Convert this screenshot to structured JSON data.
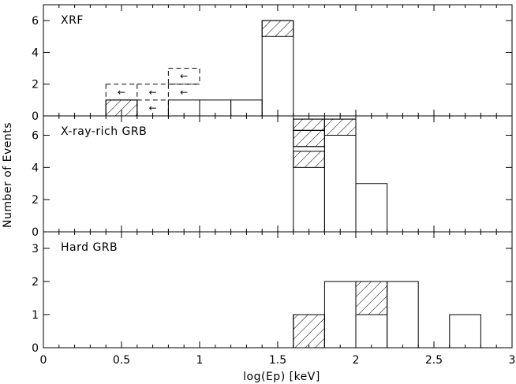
{
  "chart_data": {
    "type": "histogram",
    "xlabel": "log(Ep) [keV]",
    "ylabel": "Number of Events",
    "xlim": [
      0,
      3
    ],
    "x_ticks": [
      "0",
      "0.5",
      "1",
      "1.5",
      "2",
      "2.5",
      "3"
    ],
    "panels": [
      {
        "name": "XRF",
        "label": "XRF",
        "ylim": [
          0,
          7
        ],
        "y_ticks": [
          "0",
          "2",
          "4",
          "6"
        ],
        "outline_bins": [
          {
            "x0": 0.4,
            "x1": 0.6,
            "y": 1
          },
          {
            "x0": 0.8,
            "x1": 1.0,
            "y": 1
          },
          {
            "x0": 1.0,
            "x1": 1.2,
            "y": 1
          },
          {
            "x0": 1.2,
            "x1": 1.4,
            "y": 1
          },
          {
            "x0": 1.4,
            "x1": 1.6,
            "y": 6
          }
        ],
        "hatched_bins": [
          {
            "x0": 0.4,
            "x1": 0.6,
            "y0": 0,
            "y1": 1
          },
          {
            "x0": 1.4,
            "x1": 1.6,
            "y0": 5,
            "y1": 6
          }
        ],
        "upper_limit_bins": [
          {
            "x0": 0.4,
            "x1": 0.6,
            "y": 2
          },
          {
            "x0": 0.6,
            "x1": 0.8,
            "y": 2
          },
          {
            "x0": 0.8,
            "x1": 1.0,
            "y": 2
          },
          {
            "x0": 0.6,
            "x1": 0.8,
            "y0": 0,
            "y1": 1
          },
          {
            "x0": 0.8,
            "x1": 1.0,
            "y0": 2,
            "y1": 3
          }
        ],
        "arrows": [
          {
            "x": 0.5,
            "y": 1.5
          },
          {
            "x": 0.7,
            "y": 1.5
          },
          {
            "x": 0.9,
            "y": 1.5
          },
          {
            "x": 0.7,
            "y": 0.5
          },
          {
            "x": 0.9,
            "y": 2.5
          }
        ]
      },
      {
        "name": "X-ray-rich GRB",
        "label": "X-ray-rich GRB",
        "ylim": [
          0,
          7.2
        ],
        "y_ticks": [
          "0",
          "2",
          "4",
          "6"
        ],
        "outline_bins": [
          {
            "x0": 1.6,
            "x1": 1.8,
            "y": 7
          },
          {
            "x0": 1.8,
            "x1": 2.0,
            "y": 7
          },
          {
            "x0": 2.0,
            "x1": 2.2,
            "y": 3
          }
        ],
        "hatched_bins": [
          {
            "x0": 1.6,
            "x1": 1.8,
            "y0": 4,
            "y1": 5
          },
          {
            "x0": 1.6,
            "x1": 1.8,
            "y0": 5.3,
            "y1": 6.3
          },
          {
            "x0": 1.6,
            "x1": 1.8,
            "y0": 6.3,
            "y1": 7
          },
          {
            "x0": 1.8,
            "x1": 2.0,
            "y0": 6,
            "y1": 7
          }
        ],
        "segments": [
          {
            "x0": 1.6,
            "x1": 1.8,
            "y": 5.3
          },
          {
            "x0": 1.6,
            "x1": 1.8,
            "y": 6.3
          },
          {
            "x0": 1.8,
            "x1": 2.0,
            "y": 6
          }
        ]
      },
      {
        "name": "Hard GRB",
        "label": "Hard GRB",
        "ylim": [
          0,
          3.5
        ],
        "y_ticks": [
          "0",
          "1",
          "2",
          "3"
        ],
        "outline_bins": [
          {
            "x0": 1.6,
            "x1": 1.8,
            "y": 1
          },
          {
            "x0": 1.8,
            "x1": 2.0,
            "y": 2
          },
          {
            "x0": 2.0,
            "x1": 2.2,
            "y": 2
          },
          {
            "x0": 2.2,
            "x1": 2.4,
            "y": 2
          },
          {
            "x0": 2.6,
            "x1": 2.8,
            "y": 1
          }
        ],
        "hatched_bins": [
          {
            "x0": 1.6,
            "x1": 1.8,
            "y0": 0,
            "y1": 1
          },
          {
            "x0": 2.0,
            "x1": 2.2,
            "y0": 1,
            "y1": 2
          }
        ]
      }
    ]
  }
}
